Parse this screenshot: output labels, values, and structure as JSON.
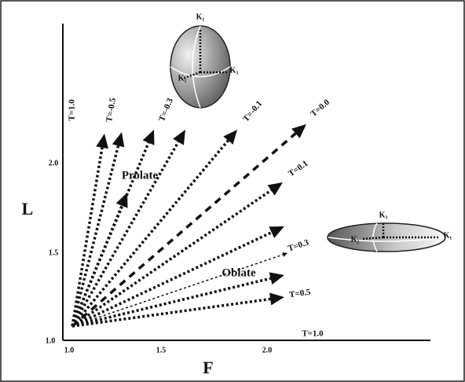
{
  "axes": {
    "x_label": "F",
    "y_label": "L",
    "x_ticks": [
      "1.0",
      "1.5",
      "2.0"
    ],
    "y_ticks": [
      "1.0",
      "1.5",
      "2.0"
    ]
  },
  "rays": {
    "t_top": "T=1.0",
    "t_m05": "T=-0.5",
    "t_m03": "T=-0.3",
    "t_m01": "T=-0.1",
    "t_00": "T=0.0",
    "t_01": "T=0.1",
    "t_03": "T=0.3",
    "t_05": "T=0.5",
    "t_bottom": "T=1.0"
  },
  "regions": {
    "prolate": "Prolate",
    "oblate": "Oblate"
  },
  "ellipsoids": {
    "prolate": {
      "k1": "K₁",
      "k2": "K₂",
      "k3": "K₃"
    },
    "oblate": {
      "k1": "K₁",
      "k2": "K₂",
      "k3": "K₃"
    }
  }
}
